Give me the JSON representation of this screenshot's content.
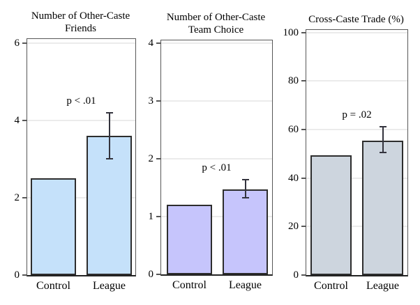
{
  "figure": {
    "background": "#ffffff"
  },
  "colors": {
    "bar_outline": "#2d2d2d",
    "error_bar": "#33333d",
    "gridline": "#ebebeb",
    "box_border": "#575757",
    "axis_line": "#222222",
    "text": "#000000",
    "panel1_bar": "#c5e1fa",
    "panel2_bar": "#c6c5fc",
    "panel3_bar": "#cdd5de"
  },
  "chart_data": [
    {
      "type": "bar",
      "title": "Number of Other-Caste Friends",
      "title_lines": [
        "Number of Other-Caste",
        "Friends"
      ],
      "categories": [
        "Control",
        "League"
      ],
      "values": [
        2.5,
        3.6
      ],
      "error_bar": {
        "category": "League",
        "low": 3.0,
        "high": 4.2
      },
      "p_label": "p < .01",
      "xlabel": "",
      "ylabel": "",
      "yticks": [
        0,
        2,
        4,
        6
      ],
      "ylim": [
        0,
        6.1
      ],
      "grid": true,
      "legend": "none",
      "bar_color": "#c5e1fa"
    },
    {
      "type": "bar",
      "title": "Number of Other-Caste Team Choice",
      "title_lines": [
        "Number of Other-Caste",
        "Team Choice"
      ],
      "categories": [
        "Control",
        "League"
      ],
      "values": [
        1.2,
        1.47
      ],
      "error_bar": {
        "category": "League",
        "low": 1.33,
        "high": 1.64
      },
      "p_label": "p < .01",
      "xlabel": "",
      "ylabel": "",
      "yticks": [
        0,
        1,
        2,
        3,
        4
      ],
      "ylim": [
        0,
        4.05
      ],
      "grid": true,
      "legend": "none",
      "bar_color": "#c6c5fc"
    },
    {
      "type": "bar",
      "title": "Cross-Caste Trade (%)",
      "title_lines": [
        "Cross-Caste Trade (%)"
      ],
      "categories": [
        "Control",
        "League"
      ],
      "values": [
        49.5,
        55.5
      ],
      "error_bar": {
        "category": "League",
        "low": 50.5,
        "high": 61
      },
      "p_label": "p = .02",
      "xlabel": "",
      "ylabel": "",
      "yticks": [
        0,
        20,
        40,
        60,
        80,
        100
      ],
      "ylim": [
        0,
        101
      ],
      "grid": true,
      "legend": "none",
      "bar_color": "#cdd5de"
    }
  ]
}
